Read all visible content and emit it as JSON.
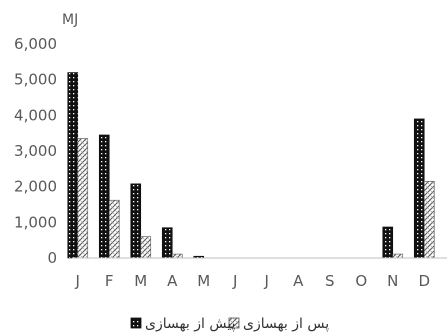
{
  "chart_data": {
    "type": "bar",
    "unit_label": "MJ",
    "categories": [
      "J",
      "F",
      "M",
      "A",
      "M",
      "J",
      "J",
      "A",
      "S",
      "O",
      "N",
      "D"
    ],
    "ylim": [
      0,
      6000
    ],
    "yticks": [
      "0",
      "1,000",
      "2,000",
      "3,000",
      "4,000",
      "5,000",
      "6,000"
    ],
    "ytick_values": [
      0,
      1000,
      2000,
      3000,
      4000,
      5000,
      6000
    ],
    "grid": false,
    "legend_position": "bottom",
    "series": [
      {
        "name": "پیش از بهسازی",
        "pattern": "dotted-dark",
        "values": [
          5200,
          3450,
          2080,
          850,
          50,
          0,
          0,
          0,
          0,
          0,
          870,
          3900
        ]
      },
      {
        "name": "پس از بهسازی",
        "pattern": "hatched-light",
        "values": [
          3350,
          1620,
          600,
          110,
          0,
          0,
          0,
          0,
          0,
          0,
          110,
          2150
        ]
      }
    ],
    "colors": {
      "dark": "#111111",
      "axis": "#bfbfbf",
      "text": "#595959"
    }
  }
}
